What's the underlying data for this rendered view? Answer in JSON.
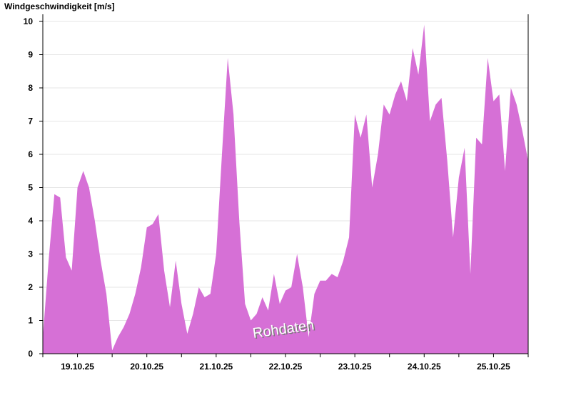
{
  "chart_data": {
    "type": "area",
    "title": "Windgeschwindigkeit [m/s]",
    "annotation": "Rohdaten",
    "color": "#d670d6",
    "grid": true,
    "x": [
      0,
      2,
      4,
      6,
      8,
      10,
      12,
      14,
      16,
      18,
      20,
      22,
      24,
      26,
      28,
      30,
      32,
      34,
      36,
      38,
      40,
      42,
      44,
      46,
      48,
      50,
      52,
      54,
      56,
      58,
      60,
      62,
      64,
      66,
      68,
      70,
      72,
      74,
      76,
      78,
      80,
      82,
      84,
      86,
      88,
      90,
      92,
      94,
      96,
      98,
      100,
      102,
      104,
      106,
      108,
      110,
      112,
      114,
      116,
      118,
      120,
      122,
      124,
      126,
      128,
      130,
      132,
      134,
      136,
      138,
      140,
      142,
      144,
      146,
      148,
      150,
      152,
      154,
      156,
      158,
      160,
      162,
      164,
      166,
      168
    ],
    "values": [
      0.5,
      2.8,
      4.8,
      4.7,
      2.9,
      2.5,
      5.0,
      5.5,
      5.0,
      4.0,
      2.8,
      1.8,
      0.1,
      0.5,
      0.8,
      1.2,
      1.8,
      2.6,
      3.8,
      3.9,
      4.2,
      2.5,
      1.4,
      2.8,
      1.5,
      0.6,
      1.2,
      2.0,
      1.7,
      1.8,
      3.0,
      6.0,
      8.9,
      7.2,
      4.0,
      1.5,
      1.0,
      1.2,
      1.7,
      1.3,
      2.4,
      1.5,
      1.9,
      2.0,
      3.0,
      2.0,
      0.5,
      1.8,
      2.2,
      2.2,
      2.4,
      2.3,
      2.8,
      3.5,
      7.2,
      6.5,
      7.2,
      5.0,
      6.0,
      7.5,
      7.2,
      7.8,
      8.2,
      7.6,
      9.2,
      8.4,
      9.9,
      7.0,
      7.5,
      7.7,
      5.8,
      3.5,
      5.3,
      6.2,
      2.4,
      6.5,
      6.3,
      8.9,
      7.6,
      7.8,
      5.5,
      8.0,
      7.5,
      6.7,
      5.8
    ],
    "xlim": [
      0,
      168
    ],
    "xticks": [
      {
        "value": 12,
        "label": "19.10.25"
      },
      {
        "value": 36,
        "label": "20.10.25"
      },
      {
        "value": 60,
        "label": "21.10.25"
      },
      {
        "value": 84,
        "label": "22.10.25"
      },
      {
        "value": 108,
        "label": "23.10.25"
      },
      {
        "value": 132,
        "label": "24.10.25"
      },
      {
        "value": 156,
        "label": "25.10.25"
      }
    ],
    "xminor_ticks": [
      0,
      24,
      48,
      72,
      96,
      120,
      144,
      168
    ],
    "ylim": [
      0,
      10
    ],
    "yticks": [
      0,
      1,
      2,
      3,
      4,
      5,
      6,
      7,
      8,
      9,
      10
    ]
  }
}
